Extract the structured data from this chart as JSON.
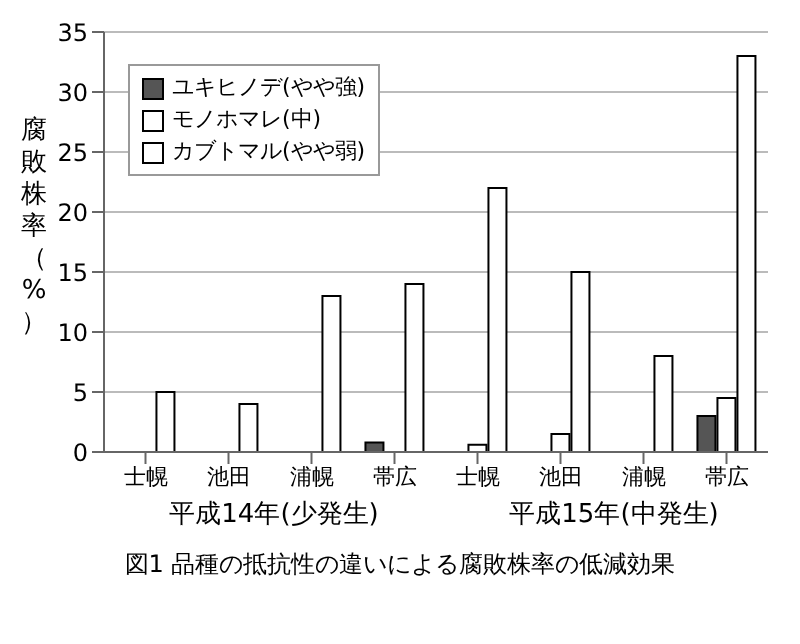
{
  "chart_data": {
    "type": "bar",
    "title": "図1 品種の抵抗性の違いによる腐敗株率の低減効果",
    "ylabel": "腐敗株率（%）",
    "categories": [
      "士幌",
      "池田",
      "浦幌",
      "帯広",
      "士幌",
      "池田",
      "浦幌",
      "帯広"
    ],
    "series": [
      {
        "name": "ユキヒノデ(やや強)",
        "color": "#555555",
        "values": [
          0,
          0,
          0,
          0.8,
          0,
          0,
          0,
          3
        ]
      },
      {
        "name": "モノホマレ(中)",
        "color": "#ffffff",
        "values": [
          0,
          0,
          0,
          0,
          0.6,
          1.5,
          0,
          4.5
        ]
      },
      {
        "name": "カブトマル(やや弱)",
        "color": "#ffffff",
        "values": [
          5,
          4,
          13,
          14,
          22,
          15,
          8,
          33
        ]
      }
    ],
    "ylim": [
      0,
      35
    ],
    "yticks": [
      0,
      5,
      10,
      15,
      20,
      25,
      30,
      35
    ],
    "grid": "y",
    "legend": "top left",
    "annotations": [
      "平成14年(少発生)",
      "平成15年(中発生)"
    ]
  }
}
